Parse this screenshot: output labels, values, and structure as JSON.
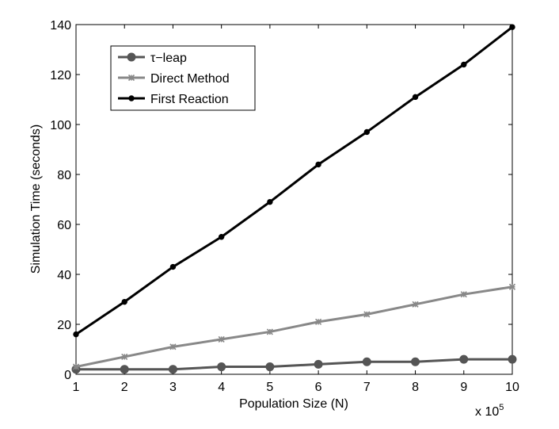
{
  "chart_data": {
    "type": "line",
    "x": [
      1,
      2,
      3,
      4,
      5,
      6,
      7,
      8,
      9,
      10
    ],
    "series": [
      {
        "name": "τ−leap",
        "values": [
          2,
          2,
          2,
          3,
          3,
          4,
          5,
          5,
          6,
          6
        ],
        "color": "#555555",
        "marker": "circle"
      },
      {
        "name": "Direct Method",
        "values": [
          3,
          7,
          11,
          14,
          17,
          21,
          24,
          28,
          32,
          35
        ],
        "color": "#888888",
        "marker": "star"
      },
      {
        "name": "First Reaction",
        "values": [
          16,
          29,
          43,
          55,
          69,
          84,
          97,
          111,
          124,
          139
        ],
        "color": "#000000",
        "marker": "dot"
      }
    ],
    "title": "",
    "xlabel": "Population Size (N)",
    "ylabel": "Simulation Time (seconds)",
    "x_multiplier": {
      "base": "x 10",
      "exponent": "5"
    },
    "xlim": [
      1,
      10
    ],
    "ylim": [
      0,
      140
    ],
    "xticks": [
      1,
      2,
      3,
      4,
      5,
      6,
      7,
      8,
      9,
      10
    ],
    "yticks": [
      0,
      20,
      40,
      60,
      80,
      100,
      120,
      140
    ],
    "grid": false,
    "legend_position": "top-left"
  }
}
